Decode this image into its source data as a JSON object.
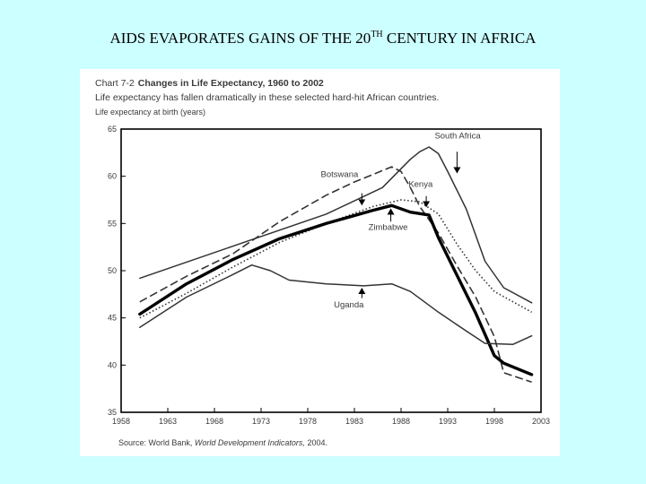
{
  "slide": {
    "title_main": "AIDS EVAPORATES GAINS OF THE 20",
    "title_sup": "TH",
    "title_rest": " CENTURY IN AFRICA"
  },
  "chart_data": {
    "type": "line",
    "figure_label": "Chart 7-2",
    "title": "Changes in Life Expectancy, 1960 to 2002",
    "subtitle": "Life expectancy has fallen dramatically in these selected hard-hit African countries.",
    "ylabel": "Life expectancy at birth (years)",
    "xlabel": "",
    "xlim": [
      1958,
      2003
    ],
    "ylim": [
      35,
      65
    ],
    "x_ticks": [
      1958,
      1963,
      1968,
      1973,
      1978,
      1983,
      1988,
      1993,
      1998,
      2003
    ],
    "y_ticks": [
      35,
      40,
      45,
      50,
      55,
      60,
      65
    ],
    "source_prefix": "Source:  World Bank, ",
    "source_italic": "World Development Indicators,",
    "source_suffix": " 2004.",
    "series": [
      {
        "name": "South Africa",
        "style": "solid",
        "color": "#333333",
        "points": [
          [
            1960,
            49.2
          ],
          [
            1970,
            52.6
          ],
          [
            1980,
            56.0
          ],
          [
            1986,
            58.8
          ],
          [
            1989,
            61.8
          ],
          [
            1990,
            62.6
          ],
          [
            1991,
            63.1
          ],
          [
            1992,
            62.4
          ],
          [
            1993,
            60.5
          ],
          [
            1995,
            56.5
          ],
          [
            1997,
            51.0
          ],
          [
            1999,
            48.2
          ],
          [
            2002,
            46.6
          ]
        ]
      },
      {
        "name": "Botswana",
        "style": "dashed",
        "color": "#333333",
        "points": [
          [
            1960,
            46.7
          ],
          [
            1965,
            49.4
          ],
          [
            1970,
            51.8
          ],
          [
            1975,
            55.2
          ],
          [
            1980,
            58.0
          ],
          [
            1983,
            59.4
          ],
          [
            1985,
            60.2
          ],
          [
            1987,
            61.0
          ],
          [
            1988,
            60.5
          ],
          [
            1989,
            58.8
          ],
          [
            1990,
            56.8
          ],
          [
            1992,
            54.0
          ],
          [
            1994,
            50.5
          ],
          [
            1996,
            47.2
          ],
          [
            1998,
            43.0
          ],
          [
            1999,
            39.2
          ],
          [
            2002,
            38.2
          ]
        ]
      },
      {
        "name": "Kenya",
        "style": "dotted",
        "color": "#333333",
        "points": [
          [
            1960,
            45.0
          ],
          [
            1965,
            47.6
          ],
          [
            1970,
            50.4
          ],
          [
            1975,
            53.0
          ],
          [
            1980,
            55.0
          ],
          [
            1985,
            56.8
          ],
          [
            1988,
            57.5
          ],
          [
            1990,
            57.3
          ],
          [
            1992,
            56.0
          ],
          [
            1994,
            52.8
          ],
          [
            1996,
            50.0
          ],
          [
            1998,
            47.8
          ],
          [
            2002,
            45.6
          ]
        ]
      },
      {
        "name": "Zimbabwe",
        "style": "thick",
        "color": "#000000",
        "points": [
          [
            1960,
            45.4
          ],
          [
            1965,
            48.6
          ],
          [
            1970,
            51.2
          ],
          [
            1975,
            53.4
          ],
          [
            1980,
            55.0
          ],
          [
            1985,
            56.4
          ],
          [
            1987,
            56.9
          ],
          [
            1989,
            56.2
          ],
          [
            1991,
            55.9
          ],
          [
            1992,
            53.5
          ],
          [
            1994,
            49.5
          ],
          [
            1996,
            45.5
          ],
          [
            1998,
            41.0
          ],
          [
            1999,
            40.2
          ],
          [
            2002,
            39.0
          ]
        ]
      },
      {
        "name": "Uganda",
        "style": "solid",
        "color": "#333333",
        "points": [
          [
            1960,
            44.0
          ],
          [
            1965,
            47.2
          ],
          [
            1970,
            49.6
          ],
          [
            1972,
            50.6
          ],
          [
            1974,
            50.0
          ],
          [
            1976,
            49.0
          ],
          [
            1980,
            48.6
          ],
          [
            1984,
            48.4
          ],
          [
            1987,
            48.6
          ],
          [
            1989,
            47.8
          ],
          [
            1992,
            45.6
          ],
          [
            1995,
            43.6
          ],
          [
            1997,
            42.3
          ],
          [
            2000,
            42.2
          ],
          [
            2002,
            43.1
          ]
        ]
      }
    ],
    "annotations": [
      {
        "text": "South Africa",
        "series": "South Africa",
        "label_x": 1991.6,
        "label_y": 64.0,
        "arrow_from": [
          1994.0,
          62.6
        ],
        "arrow_to": [
          1994.0,
          60.4
        ]
      },
      {
        "text": "Botswana",
        "series": "Botswana",
        "label_x": 1979.4,
        "label_y": 59.9,
        "arrow_from": [
          1983.8,
          58.2
        ],
        "arrow_to": [
          1983.8,
          57.0
        ]
      },
      {
        "text": "Kenya",
        "series": "Kenya",
        "label_x": 1988.8,
        "label_y": 58.9,
        "arrow_from": [
          1990.7,
          57.9
        ],
        "arrow_to": [
          1990.7,
          56.8
        ]
      },
      {
        "text": "Zimbabwe",
        "series": "Zimbabwe",
        "label_x": 1984.5,
        "label_y": 54.3,
        "arrow_from": [
          1986.9,
          55.2
        ],
        "arrow_to": [
          1986.9,
          56.5
        ]
      },
      {
        "text": "Uganda",
        "series": "Uganda",
        "label_x": 1980.8,
        "label_y": 46.1,
        "arrow_from": [
          1983.8,
          47.1
        ],
        "arrow_to": [
          1983.8,
          48.1
        ]
      }
    ],
    "grid": false,
    "legend": "none"
  }
}
